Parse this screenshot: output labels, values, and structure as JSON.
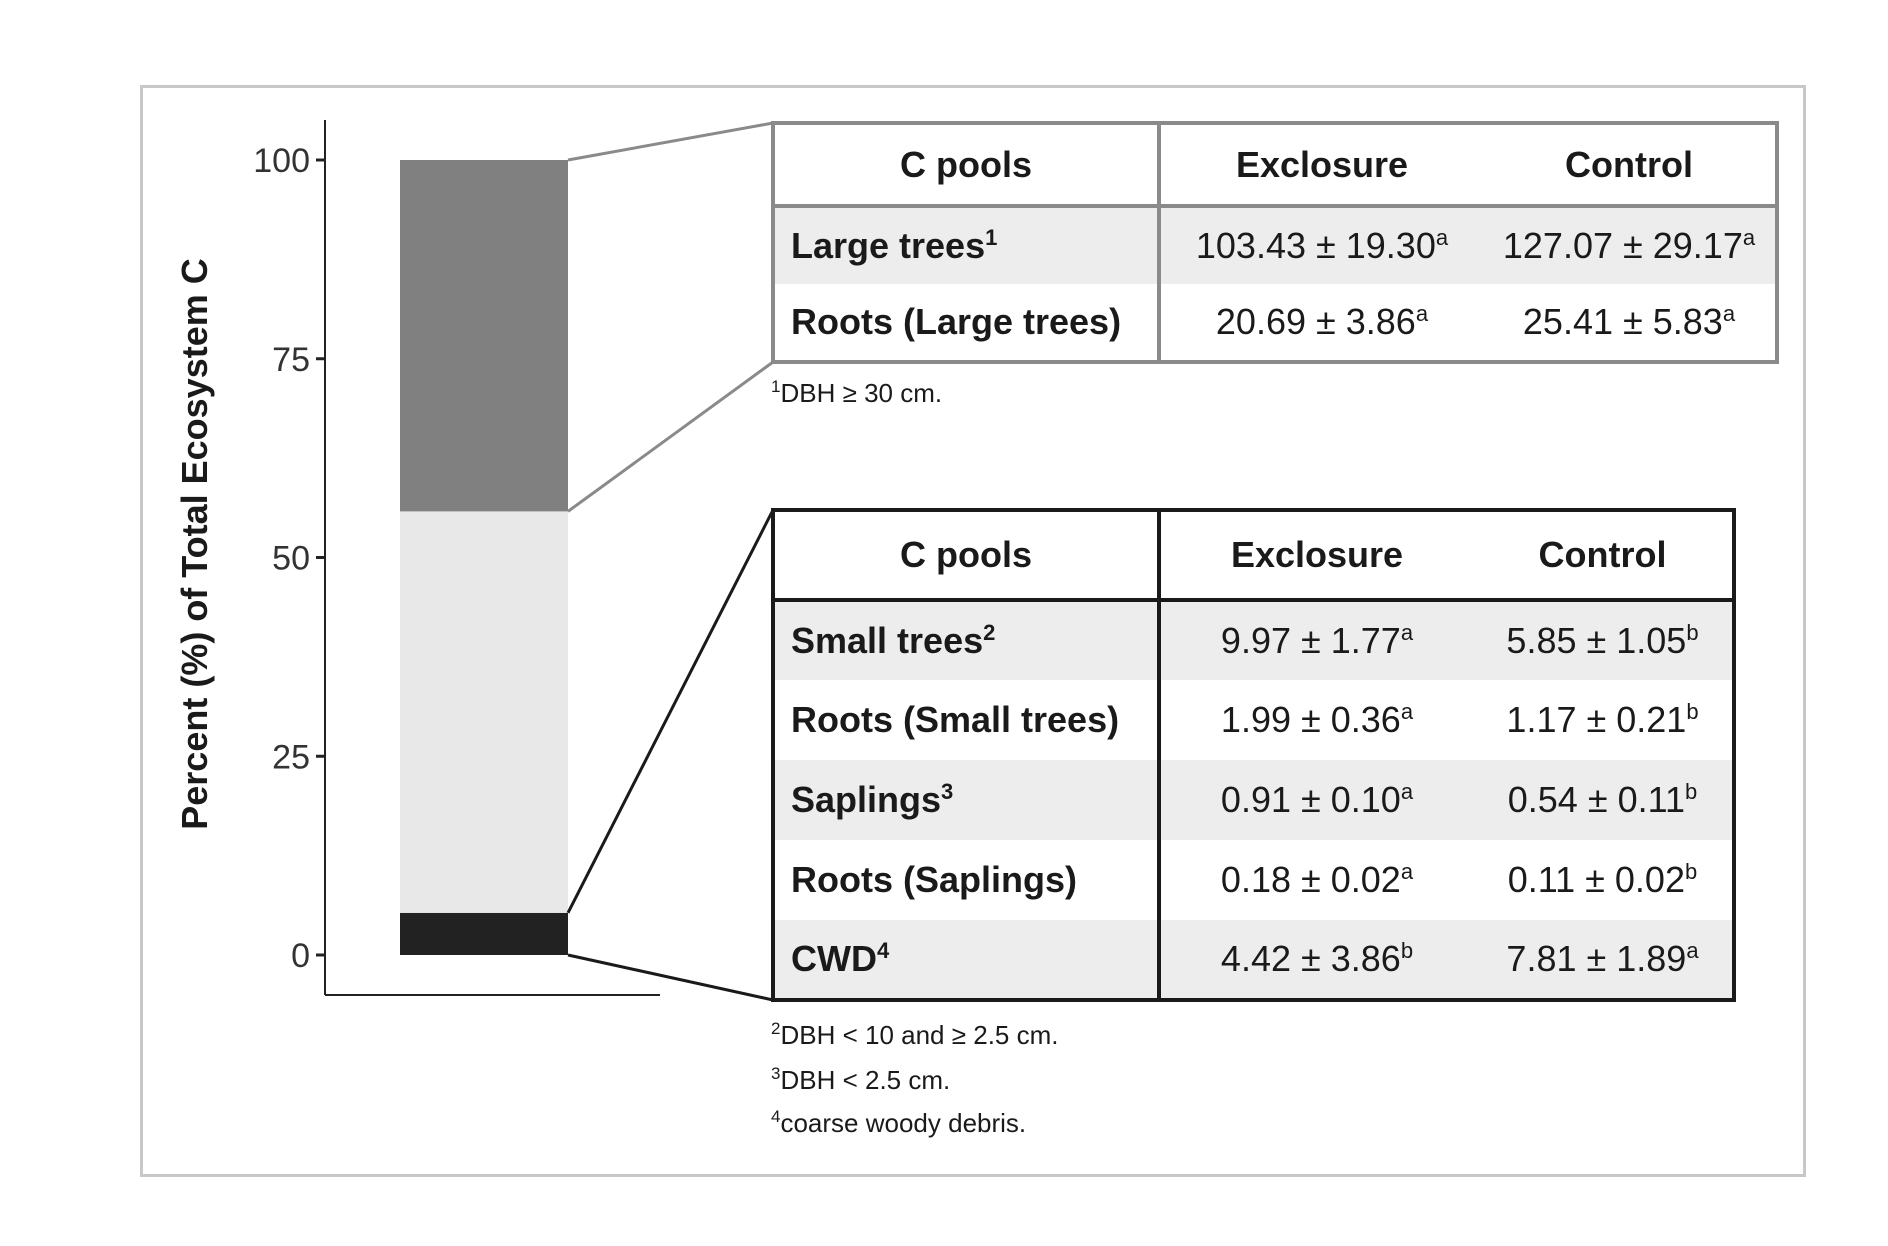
{
  "chart_data": {
    "type": "bar",
    "ylabel": "Percent (%) of Total Ecosystem C",
    "ylim": [
      0,
      100
    ],
    "yticks": [
      "0",
      "25",
      "50",
      "75",
      "100"
    ],
    "grid": false,
    "stacked": true,
    "segments": [
      {
        "value": 5.3,
        "color": "#222222"
      },
      {
        "value": 50.5,
        "color": "#e8e8e8"
      },
      {
        "value": 44.2,
        "color": "#808080"
      }
    ]
  },
  "table1": {
    "headers": [
      "C pools",
      "Exclosure",
      "Control"
    ],
    "rows": [
      {
        "pool": "Large trees",
        "pool_sup": "1",
        "exclosure": "103.43 ± 19.30",
        "exclosure_sup": "a",
        "control": "127.07 ± 29.17",
        "control_sup": "a"
      },
      {
        "pool": "Roots (Large trees)",
        "pool_sup": "",
        "exclosure": "20.69 ± 3.86",
        "exclosure_sup": "a",
        "control": "25.41 ± 5.83",
        "control_sup": "a"
      }
    ],
    "footnotes": [
      {
        "sup": "1",
        "text": "DBH ≥ 30 cm."
      }
    ]
  },
  "table2": {
    "headers": [
      "C pools",
      "Exclosure",
      "Control"
    ],
    "rows": [
      {
        "pool": "Small trees",
        "pool_sup": "2",
        "exclosure": "9.97 ± 1.77",
        "exclosure_sup": "a",
        "control": "5.85 ± 1.05",
        "control_sup": "b"
      },
      {
        "pool": "Roots (Small trees)",
        "pool_sup": "",
        "exclosure": "1.99 ± 0.36",
        "exclosure_sup": "a",
        "control": "1.17 ± 0.21",
        "control_sup": "b"
      },
      {
        "pool": "Saplings",
        "pool_sup": "3",
        "exclosure": "0.91 ± 0.10",
        "exclosure_sup": "a",
        "control": "0.54 ± 0.11",
        "control_sup": "b"
      },
      {
        "pool": "Roots (Saplings)",
        "pool_sup": "",
        "exclosure": "0.18 ± 0.02",
        "exclosure_sup": "a",
        "control": "0.11 ± 0.02",
        "control_sup": "b"
      },
      {
        "pool": "CWD",
        "pool_sup": "4",
        "exclosure": "4.42 ± 3.86",
        "exclosure_sup": "b",
        "control": "7.81 ± 1.89",
        "control_sup": "a"
      }
    ],
    "footnotes": [
      {
        "sup": "2",
        "text": "DBH < 10 and ≥ 2.5 cm."
      },
      {
        "sup": "3",
        "text": "DBH <  2.5 cm."
      },
      {
        "sup": "4",
        "text": "coarse woody debris."
      }
    ]
  }
}
